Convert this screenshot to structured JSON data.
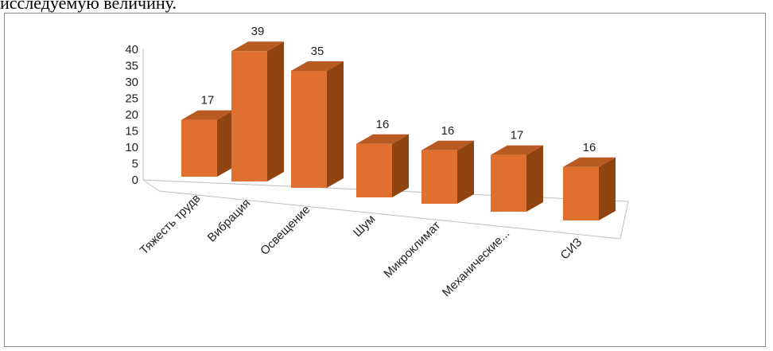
{
  "caption": "исследуемую величину.",
  "chart_data": {
    "type": "bar",
    "variant": "3d-column",
    "categories": [
      "Тяжесть трудв",
      "Вибрация",
      "Освещение",
      "Шум",
      "Микроклимат",
      "Механические...",
      "СИЗ"
    ],
    "values": [
      17,
      39,
      35,
      16,
      16,
      17,
      16
    ],
    "ylim": [
      0,
      40
    ],
    "yticks": [
      0,
      5,
      10,
      15,
      20,
      25,
      30,
      35,
      40
    ],
    "data_labels": true,
    "grid": false,
    "legend": "none",
    "title": "",
    "xlabel": "",
    "ylabel": "",
    "colors": {
      "bar_front": "#E07030",
      "bar_top": "#B85A22",
      "bar_side": "#8F4412",
      "axis": "#BFBFBF"
    }
  }
}
